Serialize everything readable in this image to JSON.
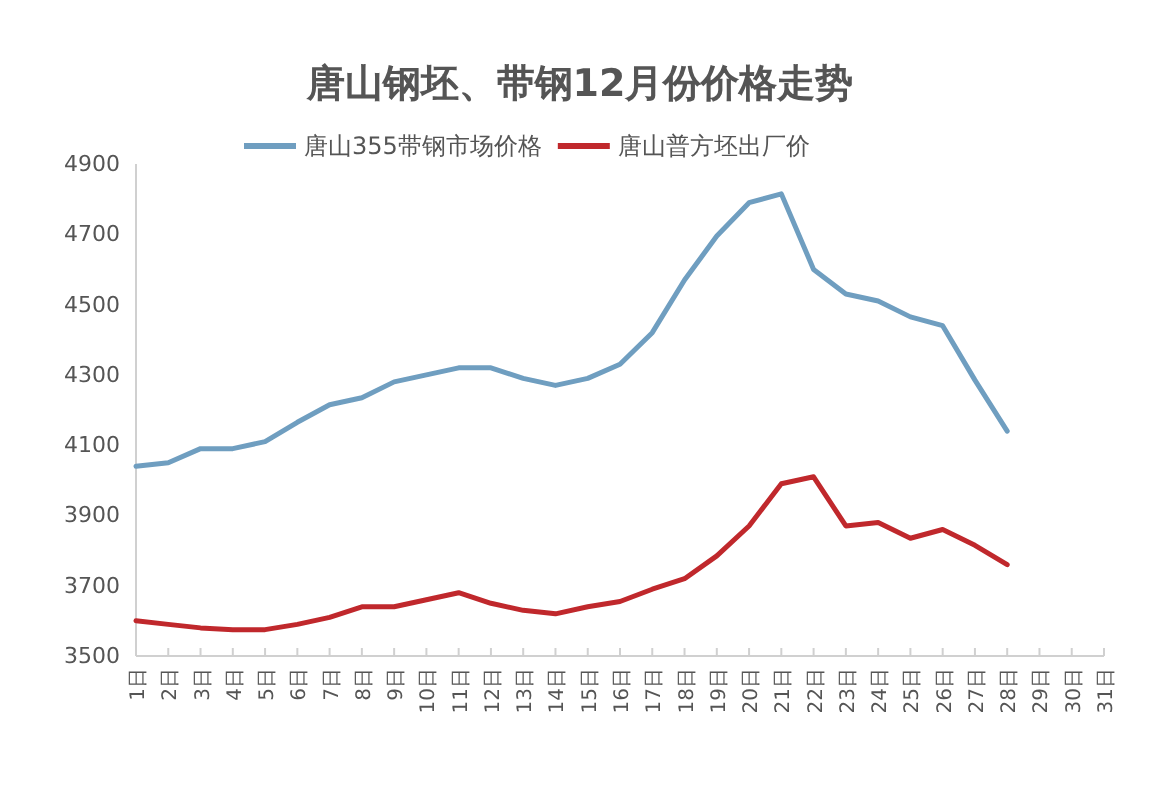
{
  "chart_data": {
    "type": "line",
    "title": "唐山钢坯、带钢12月份价格走势",
    "categories": [
      "1日",
      "2日",
      "3日",
      "4日",
      "5日",
      "6日",
      "7日",
      "8日",
      "9日",
      "10日",
      "11日",
      "12日",
      "13日",
      "14日",
      "15日",
      "16日",
      "17日",
      "18日",
      "19日",
      "20日",
      "21日",
      "22日",
      "23日",
      "24日",
      "25日",
      "26日",
      "27日",
      "28日",
      "29日",
      "30日",
      "31日"
    ],
    "series": [
      {
        "name": "唐山355带钢市场价格",
        "color": "#6f9ec0",
        "values": [
          4040,
          4050,
          4090,
          4090,
          4110,
          4165,
          4215,
          4235,
          4280,
          4300,
          4320,
          4320,
          4290,
          4270,
          4290,
          4330,
          4420,
          4570,
          4695,
          4790,
          4815,
          4600,
          4530,
          4510,
          4465,
          4440,
          4285,
          4140,
          null,
          null,
          null
        ]
      },
      {
        "name": "唐山普方坯出厂价",
        "color": "#c0282c",
        "values": [
          3600,
          3590,
          3580,
          3575,
          3575,
          3590,
          3610,
          3640,
          3640,
          3660,
          3680,
          3650,
          3630,
          3620,
          3640,
          3655,
          3690,
          3720,
          3785,
          3870,
          3990,
          4010,
          3870,
          3880,
          3835,
          3860,
          3815,
          3760,
          null,
          null,
          null
        ]
      }
    ],
    "ylim": [
      3500,
      4900
    ],
    "yticks": [
      3500,
      3700,
      3900,
      4100,
      4300,
      4500,
      4700,
      4900
    ],
    "legend": "top"
  }
}
